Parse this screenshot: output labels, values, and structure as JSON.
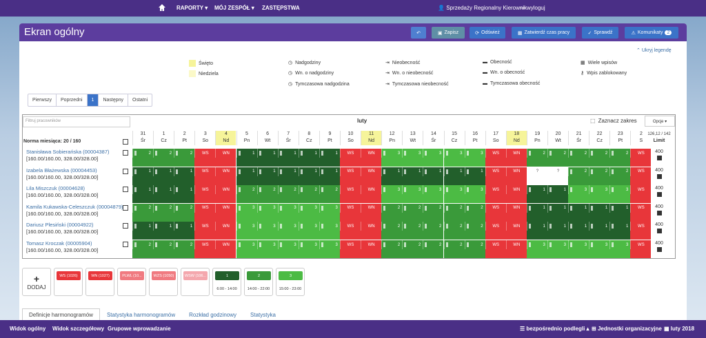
{
  "topnav": {
    "raporty": "RAPORTY ▾",
    "moj_zespol": "MÓJ ZESPÓŁ ▾",
    "zastepstwa": "ZASTĘPSTWA",
    "user": "Sprzedaży Regionalny Kierownik",
    "logout": "wyloguj"
  },
  "header": {
    "title": "Ekran ogólny",
    "zapisz": "Zapisz",
    "odswiez": "Odśwież",
    "zatwierdz": "Zatwierdź czas pracy",
    "sprawdz": "Sprawdź",
    "komunikaty": "Komunikaty",
    "komunikaty_count": "2"
  },
  "legend": {
    "toggle": "Ukryj legendę",
    "swieto": "Święto",
    "niedziela": "Niedziela",
    "nadgodziny": "Nadgodziny",
    "wn_nadgodziny": "Wn. o nadgodziny",
    "tymczasowa_nadgodzina": "Tymczasowa nadgodzina",
    "nieobecnosc": "Nieobecność",
    "wn_nieobecnosc": "Wn. o nieobecność",
    "tymczasowa_nieobecnosc": "Tymczasowa nieobecność",
    "obecnosc": "Obecność",
    "wn_obecnosc": "Wn. o obecność",
    "tymczasowa_obecnosc": "Tymczasowa obecność",
    "wiele_wpisow": "Wiele wpisów",
    "wpis_zablokowany": "Wpis zablokowany",
    "colors": {
      "swieto": "#f6f49a",
      "niedziela": "#fbf9c8"
    }
  },
  "pager": {
    "first": "Pierwszy",
    "prev": "Poprzedni",
    "current": "1",
    "next": "Następny",
    "last": "Ostatni"
  },
  "grid": {
    "filter_placeholder": "Filtruj pracowników",
    "month": "luty",
    "select_range": "Zaznacz zakres",
    "options": "Opcje ▾",
    "norma": "Norma miesiąca: 20 / 160",
    "limit_top": "126,12 / 142",
    "limit_label": "Limit",
    "days": [
      {
        "n": "31",
        "d": "Śr"
      },
      {
        "n": "1",
        "d": "Cz"
      },
      {
        "n": "2",
        "d": "Pt"
      },
      {
        "n": "3",
        "d": "So"
      },
      {
        "n": "4",
        "d": "Nd"
      },
      {
        "n": "5",
        "d": "Pn"
      },
      {
        "n": "6",
        "d": "Wt"
      },
      {
        "n": "7",
        "d": "Śr"
      },
      {
        "n": "8",
        "d": "Cz"
      },
      {
        "n": "9",
        "d": "Pt"
      },
      {
        "n": "10",
        "d": "So"
      },
      {
        "n": "11",
        "d": "Nd"
      },
      {
        "n": "12",
        "d": "Pn"
      },
      {
        "n": "13",
        "d": "Wt"
      },
      {
        "n": "14",
        "d": "Śr"
      },
      {
        "n": "15",
        "d": "Cz"
      },
      {
        "n": "16",
        "d": "Pt"
      },
      {
        "n": "17",
        "d": "So"
      },
      {
        "n": "18",
        "d": "Nd"
      },
      {
        "n": "19",
        "d": "Pn"
      },
      {
        "n": "20",
        "d": "Wt"
      },
      {
        "n": "21",
        "d": "Śr"
      },
      {
        "n": "22",
        "d": "Cz"
      },
      {
        "n": "23",
        "d": "Pt"
      },
      {
        "n": "2",
        "d": "S"
      }
    ],
    "employees": [
      {
        "name": "Stanisława Sobierańska (00004387)",
        "hours": "[160.00/160.00, 328.00/328.00]",
        "limit": "400",
        "cells": [
          "2",
          "2",
          "2",
          "WS",
          "WN",
          "1",
          "1",
          "1",
          "1",
          "1",
          "WS",
          "WN",
          "3",
          "3",
          "3",
          "3",
          "3",
          "WS",
          "WN",
          "2",
          "2",
          "2",
          "2",
          "2",
          "WS"
        ]
      },
      {
        "name": "Izabela Błażewska (00004453)",
        "hours": "[160.00/160.00, 328.00/328.00]",
        "limit": "400",
        "cells": [
          "1",
          "1",
          "1",
          "WS",
          "WN",
          "1",
          "1",
          "1",
          "1",
          "1",
          "WS",
          "WN",
          "1",
          "1",
          "1",
          "1",
          "1",
          "WS",
          "WN",
          "?",
          "?",
          "2",
          "2",
          "2",
          "WS"
        ]
      },
      {
        "name": "Lila Miszczuk (00004628)",
        "hours": "[160.00/160.00, 328.00/328.00]",
        "limit": "400",
        "cells": [
          "1",
          "1",
          "1",
          "WS",
          "WN",
          "2",
          "2",
          "2",
          "2",
          "2",
          "WS",
          "WN",
          "3",
          "3",
          "3",
          "3",
          "3",
          "WS",
          "WN",
          "1",
          "1",
          "3",
          "3",
          "3",
          "WS"
        ]
      },
      {
        "name": "Kamila Kukawska-Celeszczuk (00004879)",
        "hours": "[160.00/160.00, 328.00/328.00]",
        "limit": "400",
        "cells": [
          "2",
          "2",
          "2",
          "WS",
          "WN",
          "3",
          "3",
          "3",
          "3",
          "3",
          "WS",
          "WN",
          "2",
          "2",
          "2",
          "2",
          "2",
          "WS",
          "WN",
          "1",
          "1",
          "1",
          "1",
          "1",
          "WS"
        ]
      },
      {
        "name": "Dariusz Plesiński (00004922)",
        "hours": "[160.00/160.00, 328.00/328.00]",
        "limit": "400",
        "cells": [
          "1",
          "1",
          "1",
          "WS",
          "WN",
          "3",
          "3",
          "3",
          "3",
          "3",
          "WS",
          "WN",
          "2",
          "2",
          "2",
          "2",
          "2",
          "WS",
          "WN",
          "1",
          "1",
          "1",
          "1",
          "1",
          "WS"
        ]
      },
      {
        "name": "Tomasz Kroczak (00005904)",
        "hours": "[160.00/160.00, 328.00/328.00]",
        "limit": "400",
        "cells": [
          "2",
          "2",
          "2",
          "WS",
          "WN",
          "3",
          "3",
          "3",
          "3",
          "3",
          "WS",
          "WN",
          "2",
          "2",
          "2",
          "2",
          "2",
          "WS",
          "WN",
          "3",
          "3",
          "3",
          "3",
          "3",
          "WS"
        ]
      }
    ]
  },
  "shifts": {
    "add": "DODAJ",
    "items": [
      {
        "label": "WS (1026)",
        "color": "#e8363a",
        "time": ""
      },
      {
        "label": "WN (1027)",
        "color": "#e8363a",
        "time": ""
      },
      {
        "label": "PLWL (10...",
        "color": "#f07a80",
        "time": ""
      },
      {
        "label": "WZS (1050)",
        "color": "#f07a80",
        "time": ""
      },
      {
        "label": "WSW (106...",
        "color": "#f4a7ad",
        "time": ""
      },
      {
        "label": "1",
        "color": "#225f2b",
        "time": "6:00 - 14:00"
      },
      {
        "label": "2",
        "color": "#3a9a3a",
        "time": "14:00 - 22:00"
      },
      {
        "label": "3",
        "color": "#4cbb44",
        "time": "15:00 - 23:00"
      }
    ]
  },
  "tabs": {
    "definicje": "Definicje harmonogramów",
    "statystyka_h": "Statystyka harmonogramów",
    "rozklad": "Rozkład godzinowy",
    "statystyka": "Statystyka"
  },
  "bottombar": {
    "widok_ogolny": "Widok ogólny",
    "widok_szczegolowy": "Widok szczegółowy",
    "grupowe": "Grupowe wprowadzanie",
    "podlegli": "bezpośrednio podlegli ▴",
    "jednostki": "Jednostki organizacyjne",
    "month": "luty 2018"
  }
}
